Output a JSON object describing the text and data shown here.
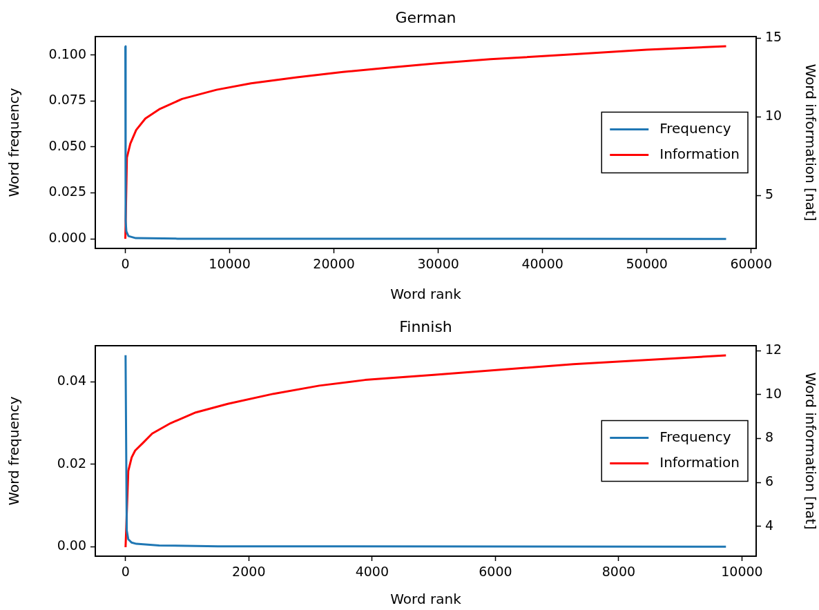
{
  "chart_data": [
    {
      "type": "line",
      "title": "German",
      "xlabel": "Word rank",
      "ylabel": "Word frequency",
      "y2label": "Word information [nat]",
      "xlim": [
        -2880,
        60480
      ],
      "xticks": [
        0,
        10000,
        20000,
        30000,
        40000,
        50000,
        60000
      ],
      "ylim": [
        -0.0052,
        0.11
      ],
      "yticks": [
        {
          "value": 0,
          "label": "0.000"
        },
        {
          "value": 0.025,
          "label": "0.025"
        },
        {
          "value": 0.05,
          "label": "0.050"
        },
        {
          "value": 0.075,
          "label": "0.075"
        },
        {
          "value": 0.1,
          "label": "0.100"
        }
      ],
      "y2lim": [
        1.64,
        15.09
      ],
      "y2ticks": [
        5,
        10,
        15
      ],
      "grid": false,
      "legend": "right",
      "line_style": "solid",
      "series": [
        {
          "name": "Frequency",
          "color": "#1f77b4",
          "x": [
            1,
            30,
            100,
            300,
            1000,
            5000,
            57600
          ],
          "values": [
            0.1047,
            0.01,
            0.004,
            0.0015,
            0.0004,
            0.0001,
            0
          ]
        },
        {
          "name": "Information",
          "color": "#ff0000",
          "axis": "y2",
          "x": [
            1,
            150,
            480,
            1040,
            1920,
            3240,
            5440,
            8740,
            12050,
            16460,
            20870,
            25270,
            29680,
            35000,
            43110,
            50000,
            57600
          ],
          "values": [
            2.25,
            7.41,
            8.29,
            9.16,
            9.89,
            10.47,
            11.13,
            11.71,
            12.12,
            12.51,
            12.84,
            13.12,
            13.38,
            13.65,
            13.97,
            14.26,
            14.48
          ]
        }
      ]
    },
    {
      "type": "line",
      "title": "Finnish",
      "xlabel": "Word rank",
      "ylabel": "Word frequency",
      "y2label": "Word information [nat]",
      "xlim": [
        -490,
        10230
      ],
      "xticks": [
        0,
        2000,
        4000,
        6000,
        8000,
        10000
      ],
      "ylim": [
        -0.0023,
        0.0488
      ],
      "yticks": [
        {
          "value": 0,
          "label": "0.00"
        },
        {
          "value": 0.02,
          "label": "0.02"
        },
        {
          "value": 0.04,
          "label": "0.04"
        }
      ],
      "y2lim": [
        2.64,
        12.23
      ],
      "y2ticks": [
        4,
        6,
        8,
        10,
        12
      ],
      "grid": false,
      "legend": "right",
      "line_style": "solid",
      "series": [
        {
          "name": "Frequency",
          "color": "#1f77b4",
          "x": [
            1,
            20,
            45,
            100,
            175,
            546,
            1500,
            9740
          ],
          "values": [
            0.0465,
            0.004,
            0.0018,
            0.001,
            0.0007,
            0.0003,
            0.0001,
            0
          ]
        },
        {
          "name": "Information",
          "color": "#ff0000",
          "axis": "y2",
          "x": [
            1,
            45,
            100,
            156,
            286,
            434,
            731,
            1139,
            1659,
            2402,
            3144,
            3886,
            5000,
            7264,
            9740
          ],
          "values": [
            3.05,
            6.52,
            7.14,
            7.45,
            7.81,
            8.23,
            8.7,
            9.19,
            9.58,
            10.04,
            10.41,
            10.67,
            10.9,
            11.39,
            11.79
          ]
        }
      ]
    }
  ]
}
